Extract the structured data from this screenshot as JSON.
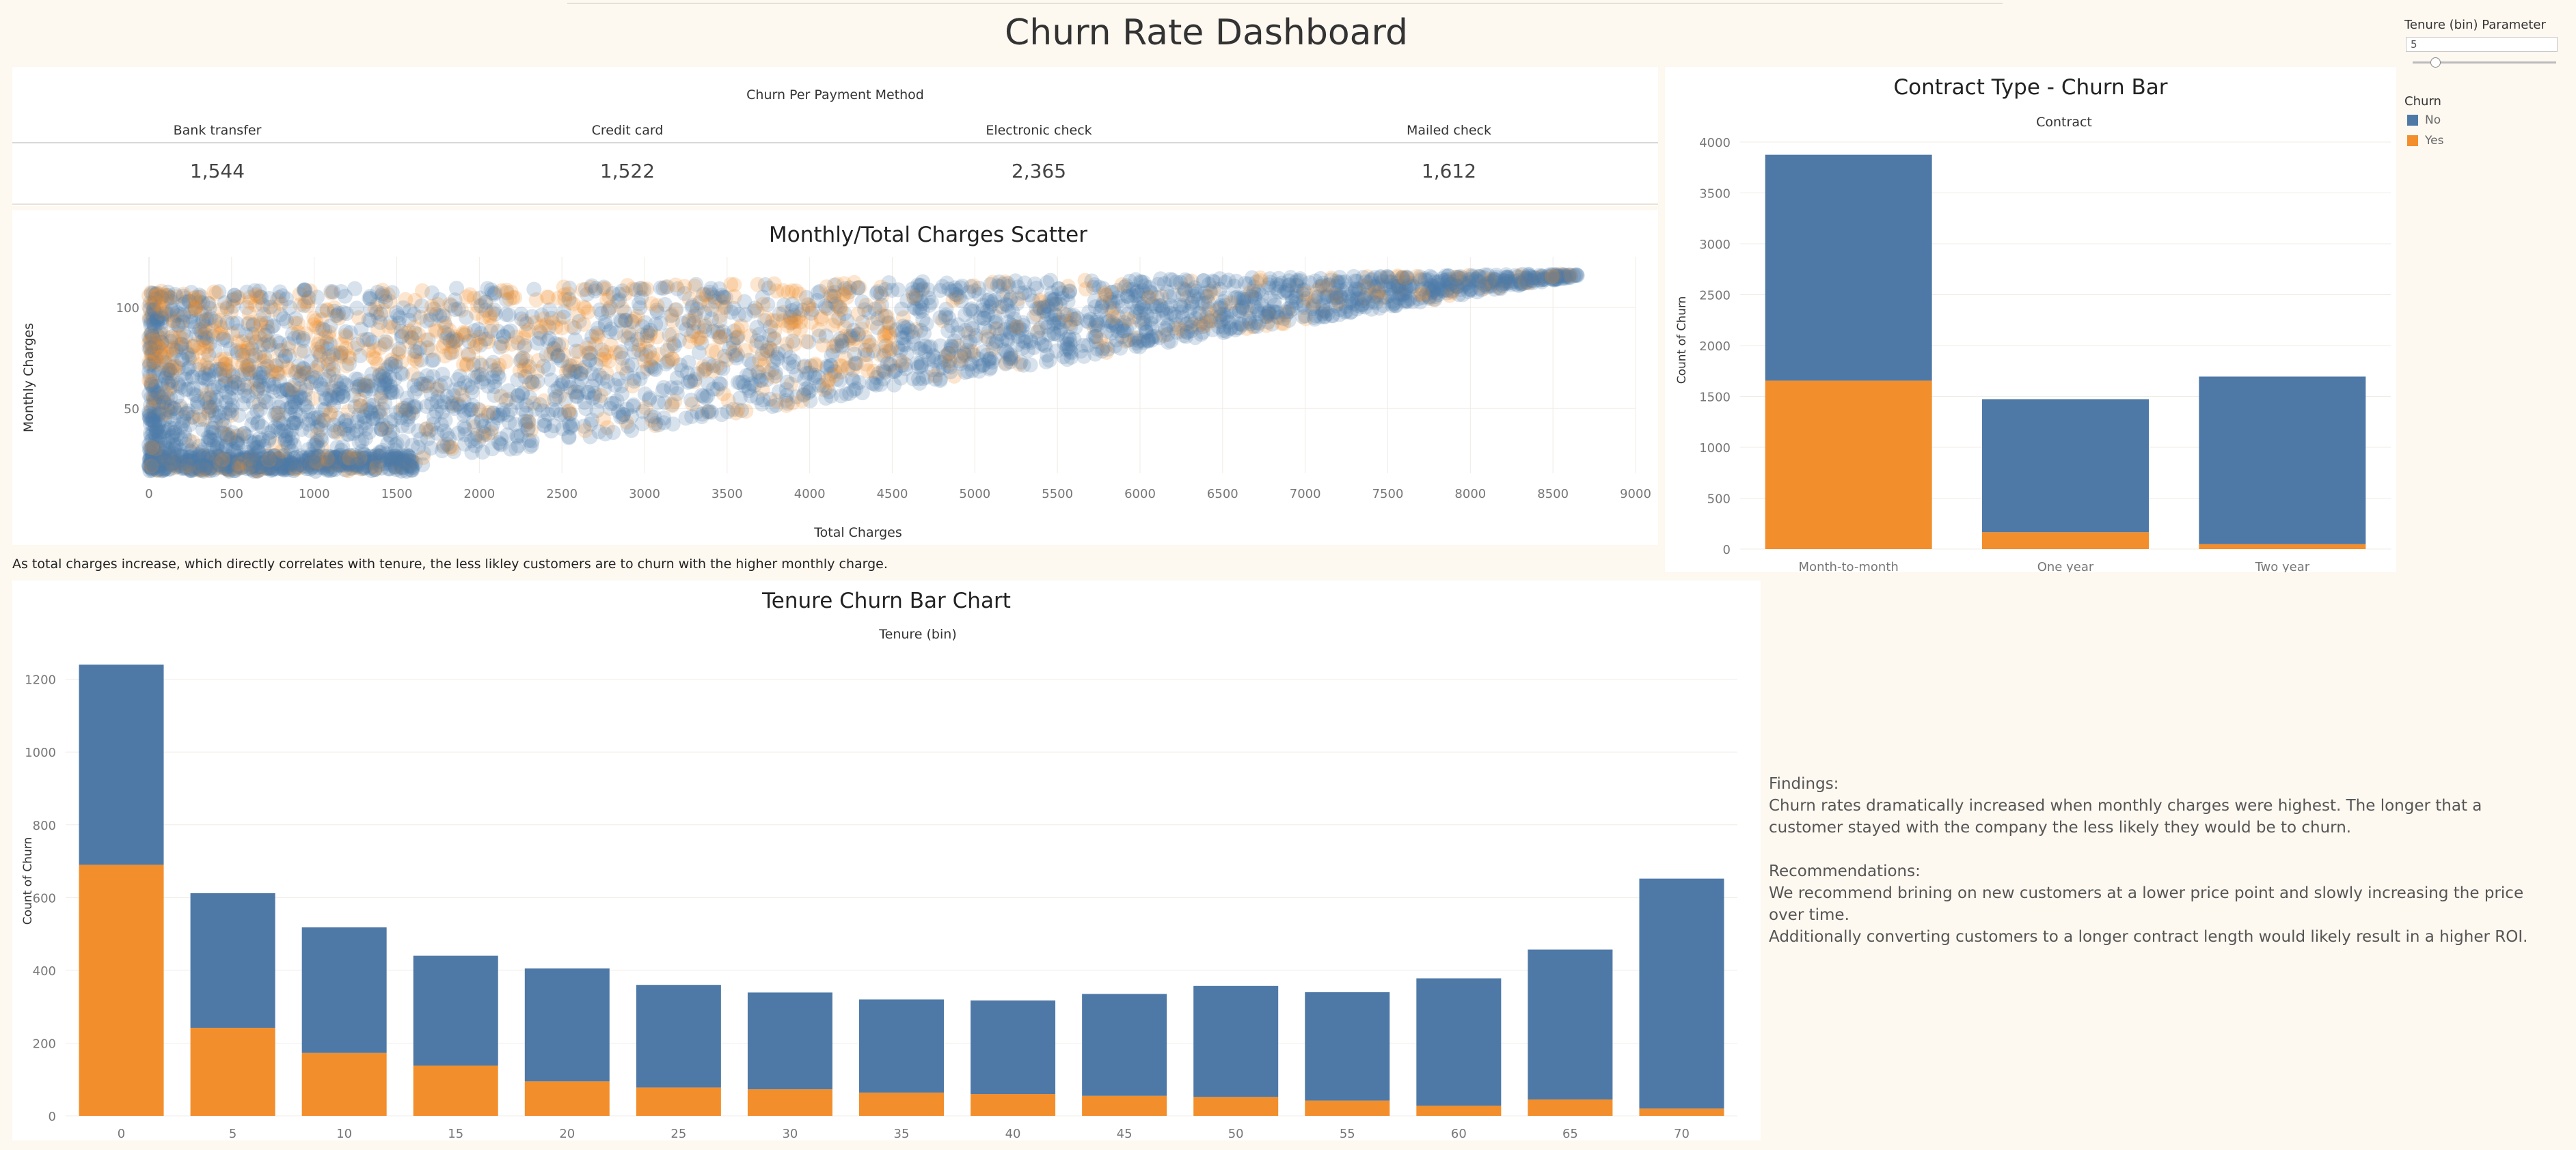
{
  "dashboard": {
    "title": "Churn Rate Dashboard",
    "caption": "As total charges increase, which directly correlates with tenure, the less likley customers are to churn with the higher monthly charge.",
    "findings": {
      "heading": "Findings:",
      "text": "Churn rates dramatically increased when monthly charges were highest. The longer that a customer stayed with the company the less likely they would be to churn.",
      "rec_heading": "Recommendations:",
      "rec_line1": "We recommend brining on new customers at a lower price point and slowly increasing the price over time.",
      "rec_line2": "Additionally converting customers to a longer contract length would likely result in a higher ROI."
    },
    "parameter": {
      "title": "Tenure (bin) Parameter",
      "value": "5",
      "slider_fraction": 0.15
    },
    "legend": {
      "title": "Churn",
      "items": [
        {
          "label": "No",
          "color": "#4e79a7"
        },
        {
          "label": "Yes",
          "color": "#f28e2b"
        }
      ]
    }
  },
  "chart_data": [
    {
      "type": "table",
      "title": "Churn Per Payment Method",
      "columns": [
        "Bank transfer",
        "Credit card",
        "Electronic check",
        "Mailed check"
      ],
      "values": [
        "1,544",
        "1,522",
        "2,365",
        "1,612"
      ]
    },
    {
      "type": "scatter",
      "title": "Monthly/Total Charges Scatter",
      "xlabel": "Total Charges",
      "ylabel": "Monthly Charges",
      "xlim": [
        0,
        9000
      ],
      "ylim": [
        18,
        125
      ],
      "xticks": [
        0,
        500,
        1000,
        1500,
        2000,
        2500,
        3000,
        3500,
        4000,
        4500,
        5000,
        5500,
        6000,
        6500,
        7000,
        7500,
        8000,
        8500,
        9000
      ],
      "yticks": [
        50,
        100
      ],
      "series": [
        {
          "name": "No",
          "color": "#4e79a7"
        },
        {
          "name": "Yes",
          "color": "#f28e2b"
        }
      ]
    },
    {
      "type": "bar",
      "stacked": true,
      "title": "Contract Type - Churn Bar",
      "subtitle": "Contract",
      "ylabel": "Count of Churn",
      "ylim": [
        0,
        4000
      ],
      "yticks": [
        0,
        500,
        1000,
        1500,
        2000,
        2500,
        3000,
        3500,
        4000
      ],
      "categories": [
        "Month-to-month",
        "One year",
        "Two year"
      ],
      "series": [
        {
          "name": "Yes",
          "color": "#f28e2b",
          "values": [
            1655,
            166,
            48
          ]
        },
        {
          "name": "No",
          "color": "#4e79a7",
          "values": [
            2220,
            1307,
            1647
          ]
        }
      ]
    },
    {
      "type": "bar",
      "stacked": true,
      "title": "Tenure Churn Bar Chart",
      "subtitle": "Tenure (bin)",
      "ylabel": "Count of Churn",
      "ylim": [
        0,
        1250
      ],
      "yticks": [
        0,
        200,
        400,
        600,
        800,
        1000,
        1200
      ],
      "categories": [
        "0",
        "5",
        "10",
        "15",
        "20",
        "25",
        "30",
        "35",
        "40",
        "45",
        "50",
        "55",
        "60",
        "65",
        "70"
      ],
      "series": [
        {
          "name": "Yes",
          "color": "#f28e2b",
          "values": [
            690,
            242,
            173,
            138,
            95,
            78,
            73,
            64,
            60,
            55,
            52,
            42,
            28,
            45,
            20
          ]
        },
        {
          "name": "No",
          "color": "#4e79a7",
          "values": [
            550,
            370,
            345,
            302,
            310,
            282,
            266,
            256,
            257,
            280,
            305,
            298,
            350,
            412,
            632
          ]
        }
      ]
    }
  ]
}
